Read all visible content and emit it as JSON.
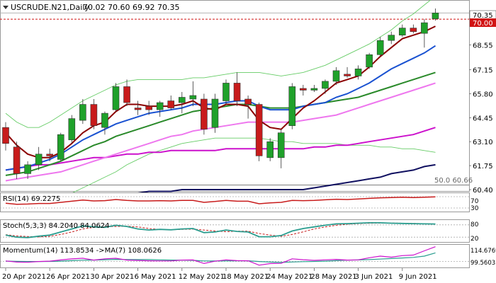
{
  "header": {
    "symbol": "USCRUDE.N21,Daily",
    "ohlc": "70.02 70.60 69.92 70.35"
  },
  "price_tags": {
    "last": "70.35",
    "level": "70.00",
    "fib": "50.0 60.66"
  },
  "panels": {
    "rsi": {
      "label": "RSI(14) 69.2275",
      "ticks": [
        "70",
        "30"
      ]
    },
    "stoch": {
      "label": "Stoch(5,3,3) 84.2040 84.0624",
      "ticks": [
        "80",
        "20"
      ]
    },
    "momentum": {
      "label": "Momentum(14) 113.8534  ->MA(7) 108.0626",
      "ticks": [
        "114.6769",
        "99.5603"
      ]
    }
  },
  "colors": {
    "bull": "#1fa12a",
    "bear": "#c81b1b",
    "ma_fast": "#8b0000",
    "ma_blue": "#1a52d1",
    "ma_green": "#2a8a2a",
    "ma_pink": "#ee77ee",
    "ma_magenta": "#cc11cc",
    "ma_navy": "#101060",
    "bollinger": "#66cc66",
    "stoch_k": "#2a9d8f",
    "stoch_d": "#c81b1b",
    "momentum": "#cc11cc",
    "rsi": "#c81b1b"
  },
  "chart_data": {
    "type": "candlestick",
    "ylim": [
      60.4,
      71.0
    ],
    "price_ticks": [
      70.35,
      70.0,
      68.55,
      67.15,
      65.8,
      64.45,
      63.1,
      61.75,
      60.4
    ],
    "price_tick_labels": [
      "70.35",
      "70.00",
      "68.55",
      "67.15",
      "65.80",
      "64.45",
      "63.10",
      "61.75",
      "60.40"
    ],
    "date_labels": [
      "20 Apr 2021",
      "26 Apr 2021",
      "30 Apr 2021",
      "6 May 2021",
      "12 May 2021",
      "18 May 2021",
      "24 May 2021",
      "28 May 2021",
      "3 Jun 2021",
      "9 Jun 2021"
    ],
    "date_label_index": [
      0,
      4,
      8,
      12,
      16,
      20,
      24,
      28,
      32,
      36
    ],
    "candles": [
      {
        "o": 63.9,
        "h": 64.2,
        "l": 62.6,
        "c": 63.0
      },
      {
        "o": 62.8,
        "h": 63.1,
        "l": 61.0,
        "c": 61.3
      },
      {
        "o": 61.3,
        "h": 62.0,
        "l": 61.0,
        "c": 61.8
      },
      {
        "o": 61.8,
        "h": 62.8,
        "l": 61.5,
        "c": 62.4
      },
      {
        "o": 62.4,
        "h": 62.7,
        "l": 62.0,
        "c": 62.3
      },
      {
        "o": 62.1,
        "h": 63.6,
        "l": 62.0,
        "c": 63.5
      },
      {
        "o": 63.2,
        "h": 64.6,
        "l": 63.0,
        "c": 64.4
      },
      {
        "o": 64.3,
        "h": 65.5,
        "l": 64.1,
        "c": 65.2
      },
      {
        "o": 65.2,
        "h": 65.5,
        "l": 63.8,
        "c": 64.0
      },
      {
        "o": 63.9,
        "h": 64.8,
        "l": 63.5,
        "c": 64.7
      },
      {
        "o": 64.9,
        "h": 66.4,
        "l": 64.8,
        "c": 66.2
      },
      {
        "o": 66.2,
        "h": 66.6,
        "l": 65.1,
        "c": 65.3
      },
      {
        "o": 65.0,
        "h": 65.4,
        "l": 64.6,
        "c": 64.9
      },
      {
        "o": 65.1,
        "h": 65.4,
        "l": 64.6,
        "c": 64.9
      },
      {
        "o": 64.9,
        "h": 65.4,
        "l": 64.5,
        "c": 65.3
      },
      {
        "o": 65.4,
        "h": 65.7,
        "l": 64.9,
        "c": 65.0
      },
      {
        "o": 65.3,
        "h": 65.9,
        "l": 64.7,
        "c": 65.6
      },
      {
        "o": 65.5,
        "h": 66.5,
        "l": 65.1,
        "c": 65.7
      },
      {
        "o": 65.5,
        "h": 65.8,
        "l": 63.5,
        "c": 63.8
      },
      {
        "o": 63.9,
        "h": 65.8,
        "l": 63.6,
        "c": 65.5
      },
      {
        "o": 65.4,
        "h": 66.6,
        "l": 65.2,
        "c": 66.4
      },
      {
        "o": 66.4,
        "h": 67.0,
        "l": 65.1,
        "c": 65.4
      },
      {
        "o": 65.5,
        "h": 65.7,
        "l": 64.4,
        "c": 65.2
      },
      {
        "o": 65.2,
        "h": 65.3,
        "l": 62.0,
        "c": 62.3
      },
      {
        "o": 62.2,
        "h": 63.3,
        "l": 62.0,
        "c": 63.1
      },
      {
        "o": 62.2,
        "h": 63.8,
        "l": 61.6,
        "c": 63.6
      },
      {
        "o": 64.0,
        "h": 66.4,
        "l": 63.8,
        "c": 66.2
      },
      {
        "o": 66.1,
        "h": 66.3,
        "l": 65.7,
        "c": 66.0
      },
      {
        "o": 66.0,
        "h": 66.3,
        "l": 65.9,
        "c": 66.1
      },
      {
        "o": 66.1,
        "h": 66.6,
        "l": 65.8,
        "c": 66.5
      },
      {
        "o": 66.5,
        "h": 67.3,
        "l": 66.3,
        "c": 67.1
      },
      {
        "o": 66.9,
        "h": 67.3,
        "l": 66.7,
        "c": 66.8
      },
      {
        "o": 66.8,
        "h": 67.4,
        "l": 66.6,
        "c": 67.2
      },
      {
        "o": 67.3,
        "h": 68.1,
        "l": 67.2,
        "c": 68.0
      },
      {
        "o": 68.0,
        "h": 69.0,
        "l": 67.9,
        "c": 68.8
      },
      {
        "o": 68.8,
        "h": 69.3,
        "l": 68.6,
        "c": 69.1
      },
      {
        "o": 69.1,
        "h": 69.7,
        "l": 69.0,
        "c": 69.5
      },
      {
        "o": 69.5,
        "h": 69.7,
        "l": 69.2,
        "c": 69.3
      },
      {
        "o": 69.2,
        "h": 70.0,
        "l": 68.4,
        "c": 69.8
      },
      {
        "o": 70.02,
        "h": 70.6,
        "l": 69.92,
        "c": 70.35
      }
    ],
    "overlays": {
      "ma_fast": [
        63.6,
        62.9,
        62.4,
        62.2,
        62.2,
        62.5,
        63.0,
        63.6,
        64.0,
        64.2,
        64.8,
        65.2,
        65.2,
        65.1,
        65.1,
        65.1,
        65.2,
        65.4,
        65.0,
        64.9,
        65.2,
        65.2,
        65.1,
        64.3,
        63.9,
        63.8,
        64.4,
        65.0,
        65.4,
        65.9,
        66.4,
        66.6,
        66.8,
        67.3,
        67.9,
        68.4,
        68.9,
        69.1,
        69.3,
        69.6
      ],
      "ma_blue": [
        61.5,
        61.6,
        61.7,
        61.9,
        62.1,
        62.4,
        62.8,
        63.2,
        63.5,
        63.8,
        64.1,
        64.3,
        64.5,
        64.7,
        64.8,
        64.9,
        65.0,
        65.2,
        65.2,
        65.2,
        65.3,
        65.4,
        65.4,
        65.1,
        64.9,
        64.9,
        64.9,
        65.1,
        65.2,
        65.3,
        65.6,
        65.8,
        66.1,
        66.4,
        66.8,
        67.2,
        67.5,
        67.8,
        68.1,
        68.5
      ],
      "ma_green": [
        61.2,
        61.3,
        61.4,
        61.6,
        61.8,
        62.0,
        62.3,
        62.6,
        62.9,
        63.1,
        63.4,
        63.6,
        63.8,
        64.0,
        64.2,
        64.4,
        64.6,
        64.8,
        64.9,
        65.0,
        65.1,
        65.2,
        65.2,
        65.1,
        65.0,
        65.0,
        65.0,
        65.1,
        65.2,
        65.3,
        65.4,
        65.5,
        65.6,
        65.8,
        66.0,
        66.2,
        66.4,
        66.6,
        66.8,
        67.0
      ],
      "ma_pink": [
        60.9,
        61.0,
        61.1,
        61.2,
        61.3,
        61.4,
        61.6,
        61.8,
        62.0,
        62.2,
        62.4,
        62.6,
        62.8,
        63.0,
        63.2,
        63.4,
        63.5,
        63.7,
        63.8,
        63.9,
        64.0,
        64.1,
        64.2,
        64.2,
        64.2,
        64.2,
        64.2,
        64.3,
        64.4,
        64.5,
        64.6,
        64.8,
        65.0,
        65.2,
        65.4,
        65.6,
        65.8,
        66.0,
        66.2,
        66.4
      ],
      "ma_magenta": [
        61.5,
        61.6,
        61.7,
        61.8,
        61.8,
        61.9,
        62.0,
        62.1,
        62.2,
        62.2,
        62.3,
        62.4,
        62.4,
        62.5,
        62.5,
        62.6,
        62.6,
        62.6,
        62.6,
        62.6,
        62.7,
        62.7,
        62.7,
        62.7,
        62.7,
        62.7,
        62.7,
        62.7,
        62.8,
        62.8,
        62.9,
        62.9,
        63.0,
        63.1,
        63.2,
        63.3,
        63.4,
        63.5,
        63.7,
        63.9
      ],
      "ma_navy": [
        59.2,
        59.3,
        59.4,
        59.5,
        59.6,
        59.7,
        59.8,
        59.9,
        60.0,
        60.0,
        60.1,
        60.2,
        60.2,
        60.3,
        60.3,
        60.3,
        60.4,
        60.4,
        60.4,
        60.4,
        60.4,
        60.4,
        60.4,
        60.4,
        60.4,
        60.4,
        60.4,
        60.4,
        60.5,
        60.6,
        60.7,
        60.8,
        60.9,
        61.0,
        61.1,
        61.3,
        61.4,
        61.5,
        61.7,
        61.8
      ],
      "bb_upper": [
        64.7,
        64.2,
        63.9,
        63.9,
        64.2,
        64.6,
        65.0,
        65.4,
        65.7,
        66.0,
        66.3,
        66.5,
        66.6,
        66.6,
        66.6,
        66.6,
        66.6,
        66.7,
        66.7,
        66.8,
        66.9,
        67.0,
        67.0,
        67.0,
        66.9,
        66.8,
        66.9,
        67.0,
        67.2,
        67.4,
        67.7,
        68.0,
        68.3,
        68.6,
        69.0,
        69.4,
        69.9,
        70.3,
        70.8,
        71.3
      ],
      "bb_lower": [
        59.9,
        59.9,
        59.8,
        59.8,
        59.9,
        60.0,
        60.2,
        60.5,
        60.8,
        61.1,
        61.4,
        61.8,
        62.1,
        62.4,
        62.6,
        62.8,
        63.0,
        63.1,
        63.2,
        63.3,
        63.3,
        63.3,
        63.3,
        63.3,
        63.2,
        63.1,
        63.1,
        63.0,
        63.0,
        63.0,
        63.0,
        62.9,
        62.9,
        62.9,
        62.8,
        62.8,
        62.7,
        62.7,
        62.6,
        62.5
      ]
    },
    "rsi": [
      47,
      43,
      44,
      46,
      46,
      50,
      54,
      58,
      55,
      56,
      60,
      57,
      55,
      55,
      56,
      55,
      57,
      57,
      50,
      53,
      57,
      54,
      54,
      45,
      48,
      50,
      57,
      56,
      57,
      59,
      61,
      60,
      62,
      64,
      66,
      67,
      68,
      67,
      68,
      69.2
    ],
    "stoch_k": [
      30,
      20,
      18,
      25,
      30,
      45,
      60,
      75,
      70,
      68,
      78,
      72,
      60,
      55,
      58,
      56,
      60,
      62,
      42,
      45,
      55,
      48,
      45,
      22,
      22,
      28,
      50,
      62,
      70,
      78,
      85,
      86,
      88,
      90,
      90,
      88,
      87,
      86,
      85,
      84.2
    ],
    "stoch_d": [
      32,
      26,
      23,
      21,
      24,
      33,
      45,
      60,
      68,
      71,
      72,
      73,
      70,
      62,
      58,
      56,
      58,
      59,
      55,
      50,
      47,
      49,
      49,
      38,
      30,
      24,
      33,
      46,
      60,
      70,
      78,
      83,
      86,
      88,
      89,
      89,
      88,
      87,
      86,
      84.1
    ],
    "momentum": [
      100.5,
      99.4,
      99.2,
      99.9,
      100.3,
      101.4,
      102.4,
      103.0,
      101.3,
      102.5,
      103.0,
      101.3,
      100.9,
      100.6,
      100.5,
      100.5,
      101.3,
      101.4,
      98.1,
      100.2,
      101.5,
      100.7,
      100.6,
      96.5,
      98.0,
      98.2,
      102.5,
      101.6,
      101.0,
      101.5,
      101.9,
      101.3,
      101.5,
      103.5,
      105.0,
      104.0,
      105.5,
      106.0,
      110.0,
      113.85
    ],
    "momentum_ma": [
      100.3,
      100.1,
      99.9,
      99.9,
      100.0,
      100.3,
      100.7,
      101.2,
      101.3,
      101.6,
      101.9,
      101.8,
      101.8,
      101.7,
      101.5,
      101.3,
      101.2,
      101.0,
      100.5,
      100.4,
      100.5,
      100.6,
      100.6,
      99.9,
      99.4,
      99.1,
      99.5,
      99.8,
      100.0,
      100.3,
      100.7,
      101.2,
      101.4,
      101.7,
      102.2,
      102.7,
      103.3,
      103.8,
      105.0,
      108.06
    ]
  }
}
